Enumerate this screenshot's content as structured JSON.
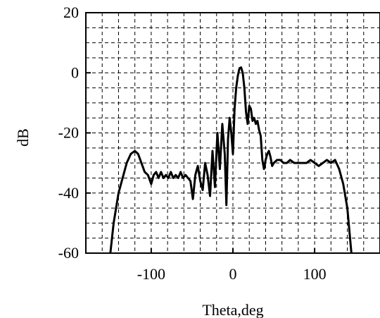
{
  "chart_data": {
    "type": "line",
    "title": "",
    "xlabel": "Theta,deg",
    "ylabel": "dB",
    "xlim": [
      -180,
      180
    ],
    "ylim": [
      -60,
      20
    ],
    "xticks": [
      -100,
      0,
      100
    ],
    "yticks": [
      20,
      0,
      -20,
      -40,
      -60
    ],
    "xtick_labels": [
      "-100",
      "0",
      "100"
    ],
    "ytick_labels": [
      "20",
      "0",
      "-20",
      "-40",
      "-60"
    ],
    "grid": true,
    "grid_style": "dashed",
    "grid_x_step": 20,
    "grid_y_step": 5,
    "line_color": "#000000",
    "series": [
      {
        "x": [
          -150,
          -146,
          -140,
          -135,
          -130,
          -125,
          -120,
          -116,
          -112,
          -108,
          -104,
          -100,
          -97,
          -94,
          -91,
          -88,
          -85,
          -82,
          -79,
          -76,
          -73,
          -70,
          -67,
          -64,
          -61,
          -58,
          -55,
          -52,
          -49,
          -46,
          -43,
          -40,
          -37,
          -34,
          -31,
          -28,
          -25,
          -22,
          -19,
          -16,
          -13,
          -10,
          -8,
          -6,
          -4,
          -2,
          0,
          2,
          4,
          6,
          8,
          10,
          12,
          14,
          16,
          18,
          20,
          22,
          24,
          26,
          28,
          30,
          32,
          34,
          36,
          38,
          40,
          42,
          44,
          46,
          48,
          50,
          54,
          58,
          62,
          66,
          70,
          75,
          80,
          85,
          90,
          95,
          100,
          105,
          110,
          115,
          120,
          125,
          130,
          135,
          140,
          145
        ],
        "y": [
          -60,
          -50,
          -40,
          -35,
          -30,
          -27,
          -26,
          -27,
          -30,
          -33,
          -34,
          -37,
          -34,
          -33,
          -35,
          -33,
          -35,
          -34,
          -35,
          -33,
          -35,
          -34,
          -35,
          -33,
          -35,
          -34,
          -35,
          -36,
          -42,
          -34,
          -31,
          -36,
          -39,
          -30,
          -34,
          -41,
          -26,
          -38,
          -20,
          -32,
          -17,
          -27,
          -44,
          -22,
          -15,
          -20,
          -27,
          -12,
          -5,
          -1,
          1.5,
          1.8,
          0,
          -5,
          -13,
          -17,
          -11,
          -12,
          -16,
          -15,
          -17,
          -16,
          -19,
          -21,
          -29,
          -32,
          -29,
          -27,
          -26,
          -28,
          -31,
          -30,
          -29,
          -29,
          -30,
          -30,
          -29,
          -30,
          -30,
          -30,
          -30,
          -29,
          -30,
          -31,
          -30,
          -29,
          -30,
          -29,
          -32,
          -37,
          -45,
          -60
        ]
      }
    ]
  }
}
